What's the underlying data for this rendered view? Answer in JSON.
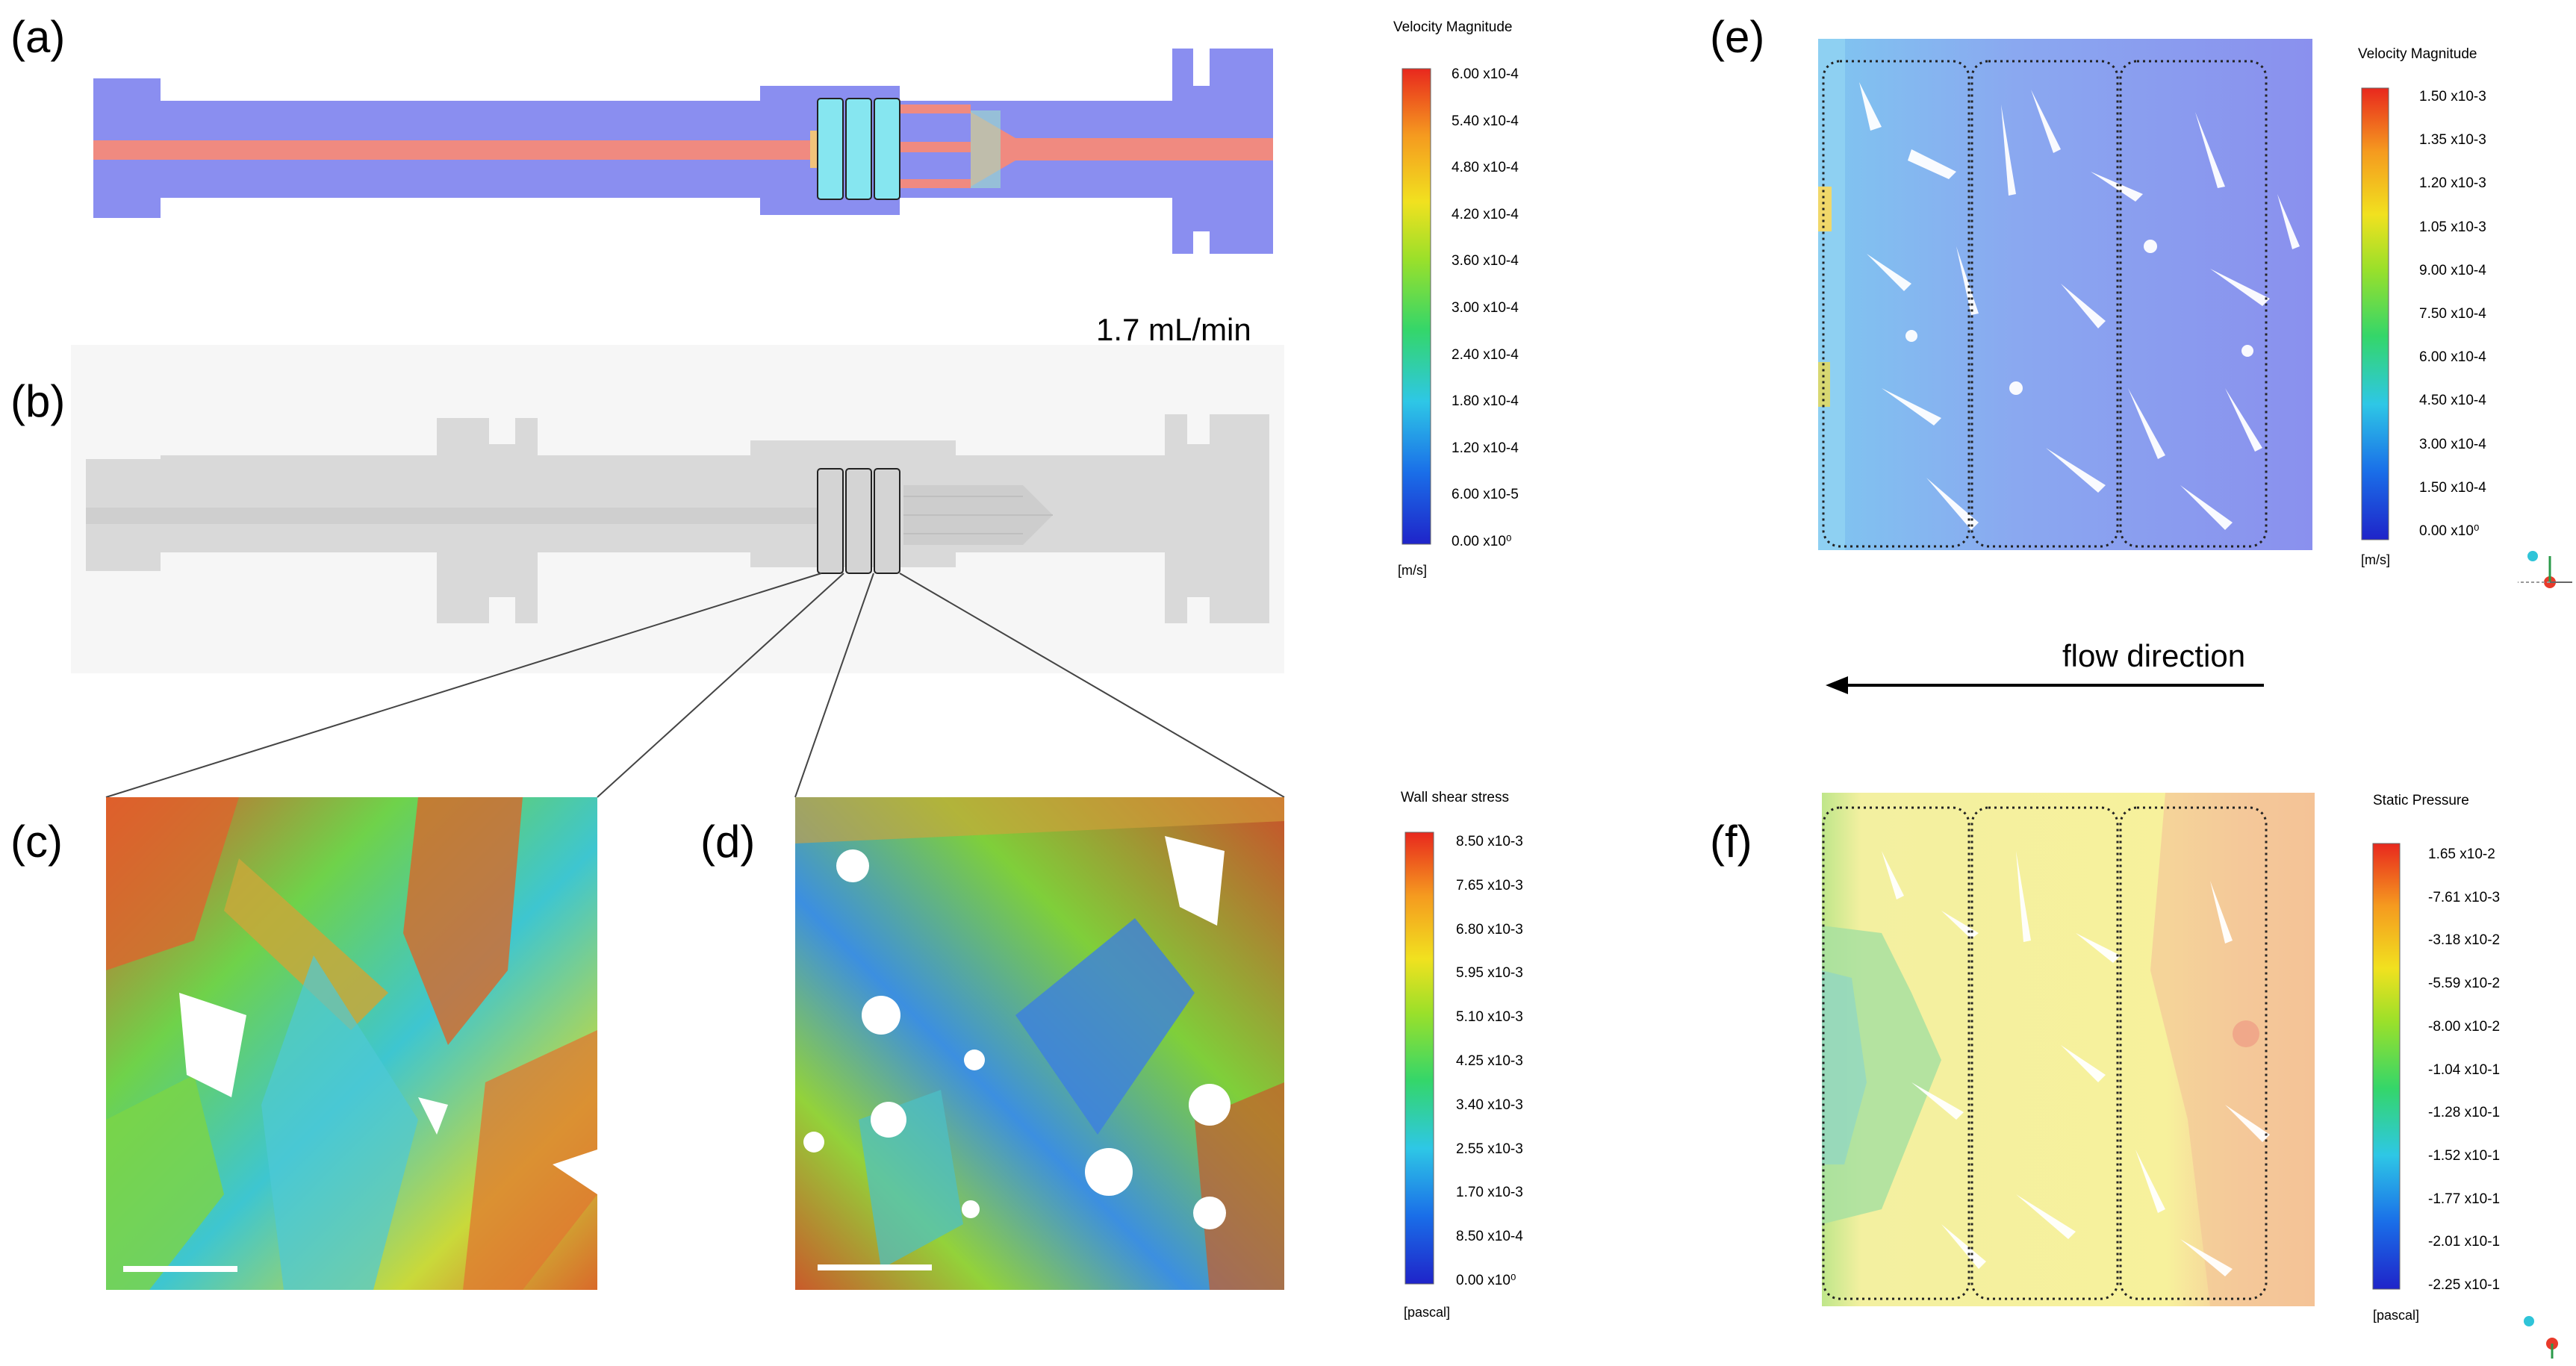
{
  "panels": {
    "a": "(a)",
    "b": "(b)",
    "c": "(c)",
    "d": "(d)",
    "e": "(e)",
    "f": "(f)"
  },
  "flow_rate": "1.7 mL/min",
  "flow_direction": "flow direction",
  "colorbar_velocity_a": {
    "title": "Velocity Magnitude",
    "unit": "[m/s]",
    "ticks": [
      "6.00 x10-4",
      "5.40 x10-4",
      "4.80 x10-4",
      "4.20 x10-4",
      "3.60 x10-4",
      "3.00 x10-4",
      "2.40 x10-4",
      "1.80 x10-4",
      "1.20 x10-4",
      "6.00 x10-5",
      "0.00 x10⁰"
    ]
  },
  "colorbar_shear": {
    "title": "Wall shear stress",
    "unit": "[pascal]",
    "ticks": [
      "8.50 x10-3",
      "7.65 x10-3",
      "6.80 x10-3",
      "5.95 x10-3",
      "5.10 x10-3",
      "4.25 x10-3",
      "3.40 x10-3",
      "2.55 x10-3",
      "1.70 x10-3",
      "8.50 x10-4",
      "0.00 x10⁰"
    ]
  },
  "colorbar_velocity_e": {
    "title": "Velocity Magnitude",
    "unit": "[m/s]",
    "ticks": [
      "1.50 x10-3",
      "1.35 x10-3",
      "1.20 x10-3",
      "1.05 x10-3",
      "9.00 x10-4",
      "7.50 x10-4",
      "6.00 x10-4",
      "4.50 x10-4",
      "3.00 x10-4",
      "1.50 x10-4",
      "0.00 x10⁰"
    ]
  },
  "colorbar_pressure": {
    "title": "Static Pressure",
    "unit": "[pascal]",
    "ticks": [
      "1.65 x10-2",
      "-7.61 x10-3",
      "-3.18 x10-2",
      "-5.59 x10-2",
      "-8.00 x10-2",
      "-1.04 x10-1",
      "-1.28 x10-1",
      "-1.52 x10-1",
      "-1.77 x10-1",
      "-2.01 x10-1",
      "-2.25 x10-1"
    ]
  },
  "colors": {
    "jet_top": "#e8281e",
    "jet_bottom": "#1e28c8",
    "channel_blue": "#8a8ef0",
    "stream_red": "#f08a80",
    "gray_body": "#d9d9d9",
    "pressure_yellow": "#f6f2a0"
  }
}
